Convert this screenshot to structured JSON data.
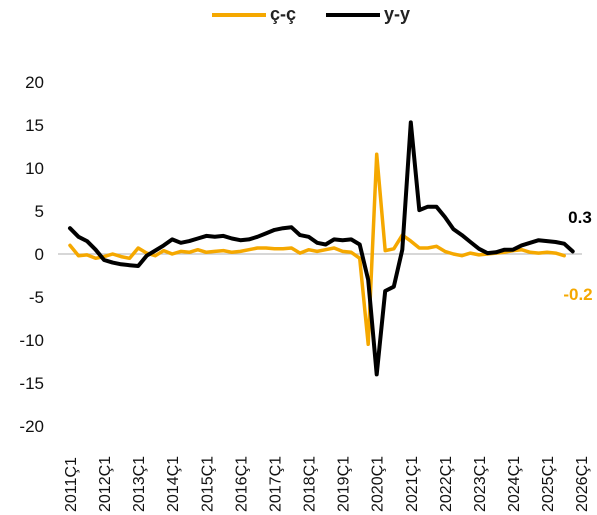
{
  "chart_data": {
    "type": "line",
    "title": "",
    "xlabel": "",
    "ylabel": "",
    "ylim": [
      -20,
      20
    ],
    "yticks": [
      20,
      15,
      10,
      5,
      0,
      -5,
      -10,
      -15,
      -20
    ],
    "x_tick_labels": [
      "2011Ç1",
      "2012Ç1",
      "2013Ç1",
      "2014Ç1",
      "2015Ç1",
      "2016Ç1",
      "2017Ç1",
      "2018Ç1",
      "2019Ç1",
      "2020Ç1",
      "2021Ç1",
      "2022Ç1",
      "2023Ç1",
      "2024Ç1",
      "2025Ç1",
      "2026Ç1"
    ],
    "grid": false,
    "legend_position": "top",
    "series": [
      {
        "name": "ç-ç",
        "color": "#F5A800",
        "values": [
          1.0,
          -0.2,
          -0.1,
          -0.5,
          -0.3,
          0.0,
          -0.3,
          -0.5,
          0.7,
          0.1,
          -0.2,
          0.4,
          0.0,
          0.3,
          0.2,
          0.5,
          0.2,
          0.3,
          0.4,
          0.2,
          0.3,
          0.5,
          0.7,
          0.7,
          0.6,
          0.6,
          0.7,
          0.1,
          0.5,
          0.3,
          0.5,
          0.7,
          0.3,
          0.2,
          -0.5,
          -10.5,
          11.6,
          0.4,
          0.6,
          2.2,
          1.5,
          0.7,
          0.7,
          0.9,
          0.3,
          0.0,
          -0.2,
          0.1,
          -0.1,
          0.0,
          0.1,
          0.2,
          0.4,
          0.5,
          0.2,
          0.1,
          0.2,
          0.1,
          -0.2
        ],
        "end_label": "-0.2"
      },
      {
        "name": "y-y",
        "color": "#000000",
        "values": [
          3.0,
          2.0,
          1.5,
          0.5,
          -0.7,
          -1.0,
          -1.2,
          -1.3,
          -1.4,
          -0.2,
          0.4,
          1.0,
          1.7,
          1.3,
          1.5,
          1.8,
          2.1,
          2.0,
          2.1,
          1.8,
          1.6,
          1.7,
          2.0,
          2.4,
          2.8,
          3.0,
          3.1,
          2.2,
          2.0,
          1.3,
          1.1,
          1.7,
          1.6,
          1.7,
          1.1,
          -3.0,
          -14.0,
          -4.3,
          -3.8,
          0.5,
          15.3,
          5.1,
          5.5,
          5.5,
          4.3,
          2.9,
          2.2,
          1.4,
          0.6,
          0.1,
          0.2,
          0.5,
          0.5,
          1.0,
          1.3,
          1.6,
          1.5,
          1.4,
          1.2,
          0.3
        ],
        "end_label": "0.3"
      }
    ]
  }
}
